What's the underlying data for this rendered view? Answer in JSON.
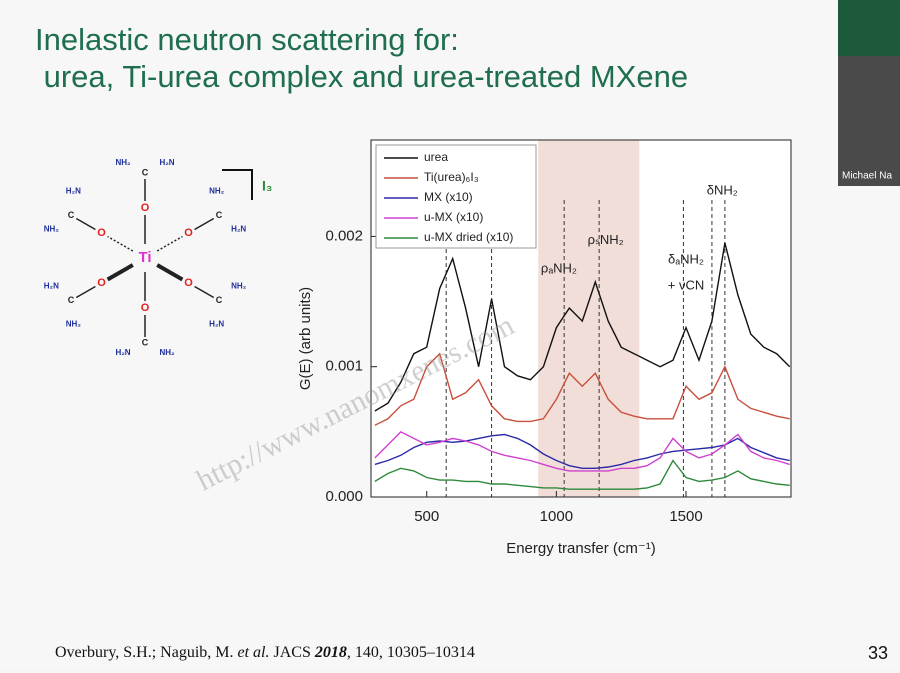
{
  "slide": {
    "title_lines": [
      "Inelastic neutron scattering for:",
      " urea, Ti-urea complex and urea-treated MXene"
    ],
    "citation": [
      "Overbury, S.H.; Naguib, M. ",
      "et al.",
      " JACS ",
      "2018",
      ", 140, 10305–10314"
    ],
    "page_number": "33",
    "watermark": "http://www.nanomxenes.com",
    "webcam_name": "Michael Na"
  },
  "molecule": {
    "center": "Ti",
    "oxygen": "O",
    "carbon": "C",
    "amine_left": "H₂N",
    "amine_right": "NH₂",
    "counterion": "I₃"
  },
  "chart_data": {
    "type": "line",
    "x_label": "Energy transfer (cm⁻¹)",
    "y_label": "G(E) (arb units)",
    "xlim": [
      285,
      1905
    ],
    "ylim": [
      0,
      0.00274
    ],
    "xticks": [
      500,
      1000,
      1500
    ],
    "yticks": [
      {
        "value": 0,
        "label": "0.000"
      },
      {
        "value": 0.001,
        "label": "0.001"
      },
      {
        "value": 0.002,
        "label": "0.002"
      }
    ],
    "legend": "upper left",
    "shaded_range": [
      930,
      1320
    ],
    "shade_color": "#f0d8d2",
    "vlines": [
      575,
      750,
      1030,
      1165,
      1490,
      1600,
      1650
    ],
    "annotations": [
      {
        "text": "ρₐNH₂",
        "x": 1010,
        "y": 0.00175
      },
      {
        "text": "ρₛNH₂",
        "x": 1190,
        "y": 0.00197
      },
      {
        "text": "δₐNH₂",
        "x": 1500,
        "y": 0.00182
      },
      {
        "text": "+ νCN",
        "x": 1500,
        "y": 0.00162
      },
      {
        "text": "δNH₂",
        "x": 1640,
        "y": 0.00235
      }
    ],
    "x": [
      300,
      350,
      400,
      450,
      500,
      550,
      600,
      650,
      700,
      750,
      800,
      850,
      900,
      950,
      1000,
      1050,
      1100,
      1150,
      1200,
      1250,
      1300,
      1350,
      1400,
      1450,
      1500,
      1550,
      1600,
      1650,
      1700,
      1750,
      1800,
      1850,
      1900
    ],
    "series": [
      {
        "name": "urea",
        "color": "#111111",
        "values": [
          0.00066,
          0.00072,
          0.00088,
          0.0011,
          0.00115,
          0.0016,
          0.00183,
          0.00145,
          0.001,
          0.00152,
          0.001,
          0.00093,
          0.0009,
          0.001,
          0.0013,
          0.00145,
          0.00135,
          0.00165,
          0.00135,
          0.00115,
          0.0011,
          0.00105,
          0.001,
          0.00105,
          0.0013,
          0.00105,
          0.00135,
          0.00195,
          0.00155,
          0.00125,
          0.00115,
          0.0011,
          0.001
        ]
      },
      {
        "name": "Ti(urea)₆I₃",
        "color": "#c8503c",
        "values": [
          0.00055,
          0.0006,
          0.0007,
          0.00075,
          0.001,
          0.0011,
          0.00075,
          0.0008,
          0.0009,
          0.0007,
          0.0006,
          0.00058,
          0.00058,
          0.0006,
          0.00075,
          0.00095,
          0.00085,
          0.00095,
          0.00075,
          0.00065,
          0.00062,
          0.0006,
          0.0006,
          0.0006,
          0.00085,
          0.00075,
          0.0008,
          0.001,
          0.00075,
          0.00068,
          0.00065,
          0.00062,
          0.0006
        ]
      },
      {
        "name": "MX (x10)",
        "color": "#2a2aa8",
        "values": [
          0.00025,
          0.00028,
          0.00032,
          0.00038,
          0.00042,
          0.00043,
          0.00042,
          0.00043,
          0.00045,
          0.00047,
          0.00048,
          0.00045,
          0.0004,
          0.00033,
          0.00028,
          0.00024,
          0.00022,
          0.00022,
          0.00023,
          0.00025,
          0.00028,
          0.0003,
          0.00033,
          0.00035,
          0.00036,
          0.00037,
          0.00038,
          0.0004,
          0.00045,
          0.00038,
          0.00034,
          0.0003,
          0.00028
        ]
      },
      {
        "name": "u-MX (x10)",
        "color": "#d040d0",
        "values": [
          0.0003,
          0.0004,
          0.0005,
          0.00045,
          0.0004,
          0.00042,
          0.00045,
          0.00043,
          0.0004,
          0.00035,
          0.00032,
          0.0003,
          0.00028,
          0.00025,
          0.00022,
          0.0002,
          0.0002,
          0.0002,
          0.0002,
          0.00022,
          0.00022,
          0.00024,
          0.0003,
          0.00045,
          0.00035,
          0.0003,
          0.00033,
          0.0004,
          0.00048,
          0.00035,
          0.0003,
          0.00028,
          0.00025
        ]
      },
      {
        "name": "u-MX dried (x10)",
        "color": "#2e8a3a",
        "values": [
          0.00012,
          0.00018,
          0.00022,
          0.0002,
          0.00015,
          0.00013,
          0.00013,
          0.00012,
          0.00012,
          0.0001,
          0.0001,
          9e-05,
          8e-05,
          7e-05,
          7e-05,
          6e-05,
          6e-05,
          6e-05,
          6e-05,
          6e-05,
          6e-05,
          7e-05,
          0.0001,
          0.00028,
          0.00015,
          0.00012,
          0.00013,
          0.00015,
          0.0002,
          0.00014,
          0.00012,
          0.0001,
          9e-05
        ]
      }
    ]
  }
}
